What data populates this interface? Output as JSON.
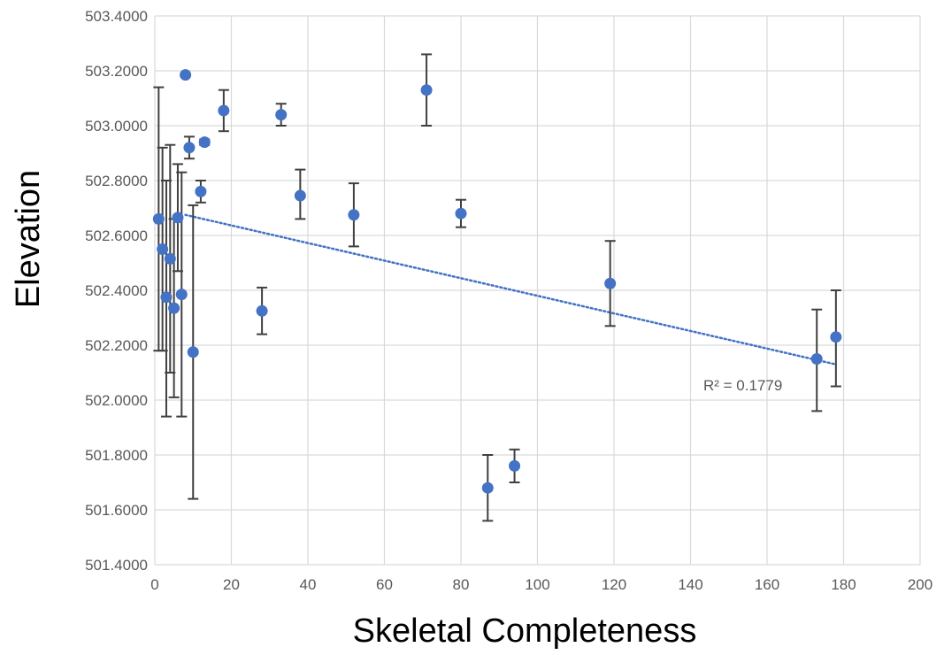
{
  "chart_data": {
    "type": "scatter",
    "xlabel": "Skeletal Completeness",
    "ylabel": "Elevation",
    "xlim": [
      0,
      200
    ],
    "ylim": [
      501.4,
      503.4
    ],
    "x_ticks": [
      0,
      20,
      40,
      60,
      80,
      100,
      120,
      140,
      160,
      180,
      200
    ],
    "y_ticks": [
      501.4,
      501.6,
      501.8,
      502.0,
      502.2,
      502.4,
      502.6,
      502.8,
      503.0,
      503.2,
      503.4
    ],
    "y_tick_labels": [
      "501.4000",
      "501.6000",
      "501.8000",
      "502.0000",
      "502.2000",
      "502.4000",
      "502.6000",
      "502.8000",
      "503.0000",
      "503.2000",
      "503.4000"
    ],
    "grid": true,
    "marker_color": "#4472C4",
    "errorbar_color": "#404040",
    "points": [
      {
        "x": 1,
        "y": 502.66,
        "err_low": 502.18,
        "err_high": 503.14
      },
      {
        "x": 2,
        "y": 502.55,
        "err_low": 502.18,
        "err_high": 502.92
      },
      {
        "x": 3,
        "y": 502.375,
        "err_low": 501.94,
        "err_high": 502.8
      },
      {
        "x": 4,
        "y": 502.515,
        "err_low": 502.1,
        "err_high": 502.93
      },
      {
        "x": 5,
        "y": 502.335,
        "err_low": 502.01,
        "err_high": 502.66
      },
      {
        "x": 6,
        "y": 502.665,
        "err_low": 502.47,
        "err_high": 502.86
      },
      {
        "x": 7,
        "y": 502.385,
        "err_low": 501.94,
        "err_high": 502.83
      },
      {
        "x": 8,
        "y": 503.185,
        "err_low": 503.18,
        "err_high": 503.19
      },
      {
        "x": 9,
        "y": 502.92,
        "err_low": 502.88,
        "err_high": 502.96
      },
      {
        "x": 10,
        "y": 502.175,
        "err_low": 501.64,
        "err_high": 502.71
      },
      {
        "x": 12,
        "y": 502.76,
        "err_low": 502.72,
        "err_high": 502.8
      },
      {
        "x": 13,
        "y": 502.94,
        "err_low": 502.93,
        "err_high": 502.95
      },
      {
        "x": 18,
        "y": 503.055,
        "err_low": 502.98,
        "err_high": 503.13
      },
      {
        "x": 28,
        "y": 502.325,
        "err_low": 502.24,
        "err_high": 502.41
      },
      {
        "x": 33,
        "y": 503.04,
        "err_low": 503.0,
        "err_high": 503.08
      },
      {
        "x": 38,
        "y": 502.745,
        "err_low": 502.66,
        "err_high": 502.84
      },
      {
        "x": 52,
        "y": 502.675,
        "err_low": 502.56,
        "err_high": 502.79
      },
      {
        "x": 71,
        "y": 503.13,
        "err_low": 503.0,
        "err_high": 503.26
      },
      {
        "x": 80,
        "y": 502.68,
        "err_low": 502.63,
        "err_high": 502.73
      },
      {
        "x": 87,
        "y": 501.68,
        "err_low": 501.56,
        "err_high": 501.8
      },
      {
        "x": 94,
        "y": 501.76,
        "err_low": 501.7,
        "err_high": 501.82
      },
      {
        "x": 119,
        "y": 502.425,
        "err_low": 502.27,
        "err_high": 502.58
      },
      {
        "x": 173,
        "y": 502.15,
        "err_low": 501.96,
        "err_high": 502.33
      },
      {
        "x": 178,
        "y": 502.23,
        "err_low": 502.05,
        "err_high": 502.4
      }
    ],
    "trendline": {
      "type": "linear",
      "x_start": 8,
      "y_start": 502.675,
      "x_end": 178,
      "y_end": 502.13,
      "color": "#4472C4",
      "style": "dotted",
      "label": "R² = 0.1779"
    }
  }
}
